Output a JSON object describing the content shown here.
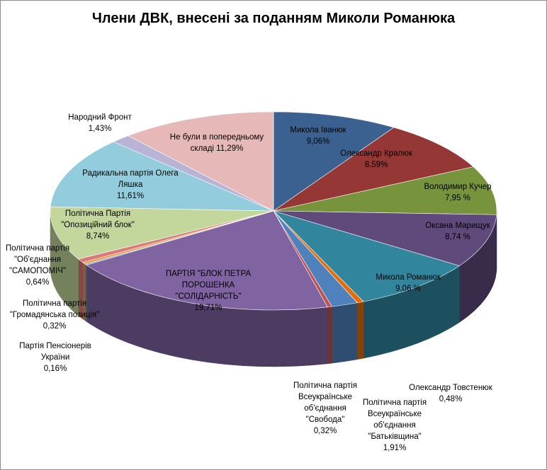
{
  "chart_data": {
    "type": "pie",
    "three_d": true,
    "title": "Члени ДВК, внесені за поданням Миколи Романюка",
    "categories": [
      "Микола Іванюк",
      "Олександр  Кралюк",
      "Володимир Кучер",
      "Оксана Марищук",
      "Микола Романюк",
      "Олександр Товстенюк",
      "Політична партія Всеукраїнське об'єднання \"Батьківщина\"",
      "Політична партія Всеукраїнське об'єднання \"Свобода\"",
      "ПАРТІЯ \"БЛОК ПЕТРА ПОРОШЕНКА \"СОЛІДАРНІСТЬ\"",
      "Партія Пенсіонерів України",
      "Політична партія \"Громадянська позиція\"",
      "Політична партія \"Об'єднання \"САМОПОМІЧ\"",
      "Політична Партія \"Опозиційний блок\"",
      "Радикальна партія Олега Ляшка",
      "Народний Фронт",
      "Не були в попередньому складі"
    ],
    "values": [
      9.06,
      8.59,
      7.95,
      8.74,
      9.06,
      0.48,
      1.91,
      0.32,
      19.71,
      0.16,
      0.32,
      0.64,
      8.74,
      11.61,
      1.43,
      11.29
    ],
    "value_labels": [
      "9,06%",
      "8,59%",
      "7,95 %",
      "8,74 %",
      "9,06 %",
      "0,48%",
      "1,91%",
      "0,32%",
      "19,71%",
      "0,16%",
      "0,32%",
      "0,64%",
      "8,74%",
      "11,61%",
      "1,43%",
      "11,29%"
    ],
    "colors": [
      "#3a6190",
      "#953735",
      "#77933c",
      "#5f4a7b",
      "#31859c",
      "#e46c0a",
      "#4f81bd",
      "#c0504d",
      "#8064a2",
      "#4bacc6",
      "#f79646",
      "#d9797a",
      "#c3d69b",
      "#93cddd",
      "#b9b3d6",
      "#e6b9b8"
    ]
  }
}
